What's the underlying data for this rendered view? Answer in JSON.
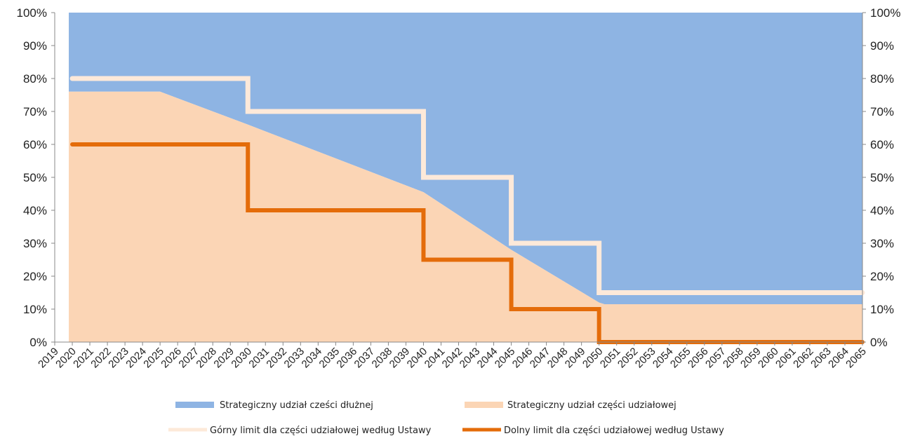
{
  "chart_data": {
    "type": "area",
    "x": [
      2019,
      2020,
      2021,
      2022,
      2023,
      2024,
      2025,
      2026,
      2027,
      2028,
      2029,
      2030,
      2031,
      2032,
      2033,
      2034,
      2035,
      2036,
      2037,
      2038,
      2039,
      2040,
      2041,
      2042,
      2043,
      2044,
      2045,
      2046,
      2047,
      2048,
      2049,
      2050,
      2051,
      2052,
      2053,
      2054,
      2055,
      2056,
      2057,
      2058,
      2059,
      2060,
      2061,
      2062,
      2063,
      2064,
      2065
    ],
    "y_ticks": [
      "0%",
      "10%",
      "20%",
      "30%",
      "40%",
      "50%",
      "60%",
      "70%",
      "80%",
      "90%",
      "100%"
    ],
    "ylim": [
      0,
      100
    ],
    "equity_share": {
      "points": [
        [
          2019.8,
          76
        ],
        [
          2025,
          76
        ],
        [
          2030,
          66
        ],
        [
          2040,
          45.5
        ],
        [
          2045,
          28
        ],
        [
          2050,
          12
        ],
        [
          2050.3,
          11.5
        ],
        [
          2065,
          11.5
        ]
      ]
    },
    "upper_limit": {
      "points": [
        [
          2020,
          80
        ],
        [
          2030,
          80
        ],
        [
          2030,
          70
        ],
        [
          2040,
          70
        ],
        [
          2040,
          50
        ],
        [
          2045,
          50
        ],
        [
          2045,
          30
        ],
        [
          2050,
          30
        ],
        [
          2050,
          15
        ],
        [
          2065,
          15
        ]
      ]
    },
    "lower_limit": {
      "points": [
        [
          2020,
          60
        ],
        [
          2030,
          60
        ],
        [
          2030,
          40
        ],
        [
          2040,
          40
        ],
        [
          2040,
          25
        ],
        [
          2045,
          25
        ],
        [
          2045,
          10
        ],
        [
          2050,
          10
        ],
        [
          2050,
          0
        ],
        [
          2065,
          0
        ]
      ]
    },
    "series": [
      {
        "name": "Strategiczny udział cześci dłużnej",
        "color": "#8eb4e3",
        "kind": "area"
      },
      {
        "name": "Strategiczny udział części udziałowej",
        "color": "#fbd5b5",
        "kind": "area"
      },
      {
        "name": "Górny limit dla części udziałowej według Ustawy",
        "color": "#fde9d9",
        "kind": "line"
      },
      {
        "name": "Dolny limit dla części udziałowej według Ustawy",
        "color": "#e46c0a",
        "kind": "line"
      }
    ],
    "grid": false,
    "legend_position": "bottom"
  }
}
